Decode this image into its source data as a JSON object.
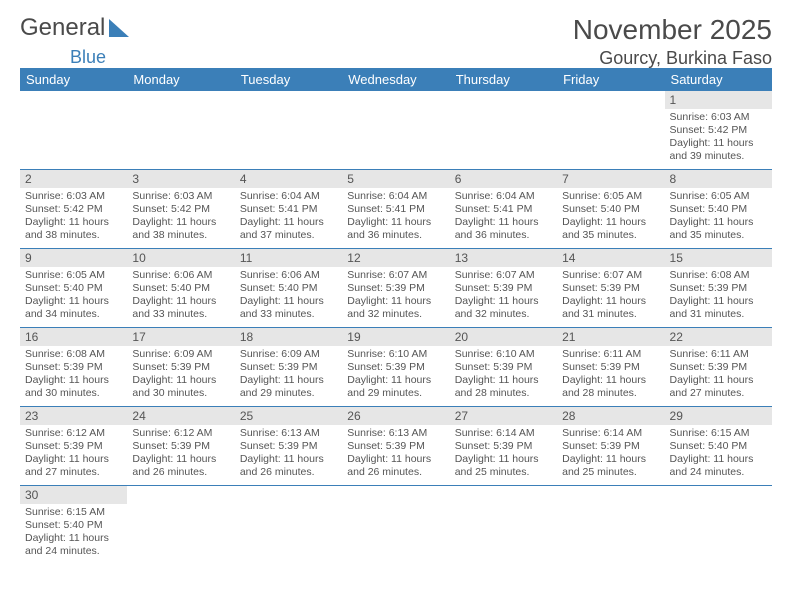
{
  "brand": {
    "a": "General",
    "b": "Blue"
  },
  "title": "November 2025",
  "location": "Gourcy, Burkina Faso",
  "colors": {
    "header_bg": "#3b7fb8",
    "header_text": "#ffffff",
    "daynum_bg": "#e6e6e6",
    "text": "#555555",
    "rule": "#3b7fb8"
  },
  "day_labels": [
    "Sunday",
    "Monday",
    "Tuesday",
    "Wednesday",
    "Thursday",
    "Friday",
    "Saturday"
  ],
  "weeks": [
    [
      null,
      null,
      null,
      null,
      null,
      null,
      {
        "n": "1",
        "sr": "6:03 AM",
        "ss": "5:42 PM",
        "dl": "11 hours and 39 minutes."
      }
    ],
    [
      {
        "n": "2",
        "sr": "6:03 AM",
        "ss": "5:42 PM",
        "dl": "11 hours and 38 minutes."
      },
      {
        "n": "3",
        "sr": "6:03 AM",
        "ss": "5:42 PM",
        "dl": "11 hours and 38 minutes."
      },
      {
        "n": "4",
        "sr": "6:04 AM",
        "ss": "5:41 PM",
        "dl": "11 hours and 37 minutes."
      },
      {
        "n": "5",
        "sr": "6:04 AM",
        "ss": "5:41 PM",
        "dl": "11 hours and 36 minutes."
      },
      {
        "n": "6",
        "sr": "6:04 AM",
        "ss": "5:41 PM",
        "dl": "11 hours and 36 minutes."
      },
      {
        "n": "7",
        "sr": "6:05 AM",
        "ss": "5:40 PM",
        "dl": "11 hours and 35 minutes."
      },
      {
        "n": "8",
        "sr": "6:05 AM",
        "ss": "5:40 PM",
        "dl": "11 hours and 35 minutes."
      }
    ],
    [
      {
        "n": "9",
        "sr": "6:05 AM",
        "ss": "5:40 PM",
        "dl": "11 hours and 34 minutes."
      },
      {
        "n": "10",
        "sr": "6:06 AM",
        "ss": "5:40 PM",
        "dl": "11 hours and 33 minutes."
      },
      {
        "n": "11",
        "sr": "6:06 AM",
        "ss": "5:40 PM",
        "dl": "11 hours and 33 minutes."
      },
      {
        "n": "12",
        "sr": "6:07 AM",
        "ss": "5:39 PM",
        "dl": "11 hours and 32 minutes."
      },
      {
        "n": "13",
        "sr": "6:07 AM",
        "ss": "5:39 PM",
        "dl": "11 hours and 32 minutes."
      },
      {
        "n": "14",
        "sr": "6:07 AM",
        "ss": "5:39 PM",
        "dl": "11 hours and 31 minutes."
      },
      {
        "n": "15",
        "sr": "6:08 AM",
        "ss": "5:39 PM",
        "dl": "11 hours and 31 minutes."
      }
    ],
    [
      {
        "n": "16",
        "sr": "6:08 AM",
        "ss": "5:39 PM",
        "dl": "11 hours and 30 minutes."
      },
      {
        "n": "17",
        "sr": "6:09 AM",
        "ss": "5:39 PM",
        "dl": "11 hours and 30 minutes."
      },
      {
        "n": "18",
        "sr": "6:09 AM",
        "ss": "5:39 PM",
        "dl": "11 hours and 29 minutes."
      },
      {
        "n": "19",
        "sr": "6:10 AM",
        "ss": "5:39 PM",
        "dl": "11 hours and 29 minutes."
      },
      {
        "n": "20",
        "sr": "6:10 AM",
        "ss": "5:39 PM",
        "dl": "11 hours and 28 minutes."
      },
      {
        "n": "21",
        "sr": "6:11 AM",
        "ss": "5:39 PM",
        "dl": "11 hours and 28 minutes."
      },
      {
        "n": "22",
        "sr": "6:11 AM",
        "ss": "5:39 PM",
        "dl": "11 hours and 27 minutes."
      }
    ],
    [
      {
        "n": "23",
        "sr": "6:12 AM",
        "ss": "5:39 PM",
        "dl": "11 hours and 27 minutes."
      },
      {
        "n": "24",
        "sr": "6:12 AM",
        "ss": "5:39 PM",
        "dl": "11 hours and 26 minutes."
      },
      {
        "n": "25",
        "sr": "6:13 AM",
        "ss": "5:39 PM",
        "dl": "11 hours and 26 minutes."
      },
      {
        "n": "26",
        "sr": "6:13 AM",
        "ss": "5:39 PM",
        "dl": "11 hours and 26 minutes."
      },
      {
        "n": "27",
        "sr": "6:14 AM",
        "ss": "5:39 PM",
        "dl": "11 hours and 25 minutes."
      },
      {
        "n": "28",
        "sr": "6:14 AM",
        "ss": "5:39 PM",
        "dl": "11 hours and 25 minutes."
      },
      {
        "n": "29",
        "sr": "6:15 AM",
        "ss": "5:40 PM",
        "dl": "11 hours and 24 minutes."
      }
    ],
    [
      {
        "n": "30",
        "sr": "6:15 AM",
        "ss": "5:40 PM",
        "dl": "11 hours and 24 minutes."
      },
      null,
      null,
      null,
      null,
      null,
      null
    ]
  ],
  "labels": {
    "sunrise": "Sunrise:",
    "sunset": "Sunset:",
    "daylight": "Daylight:"
  }
}
